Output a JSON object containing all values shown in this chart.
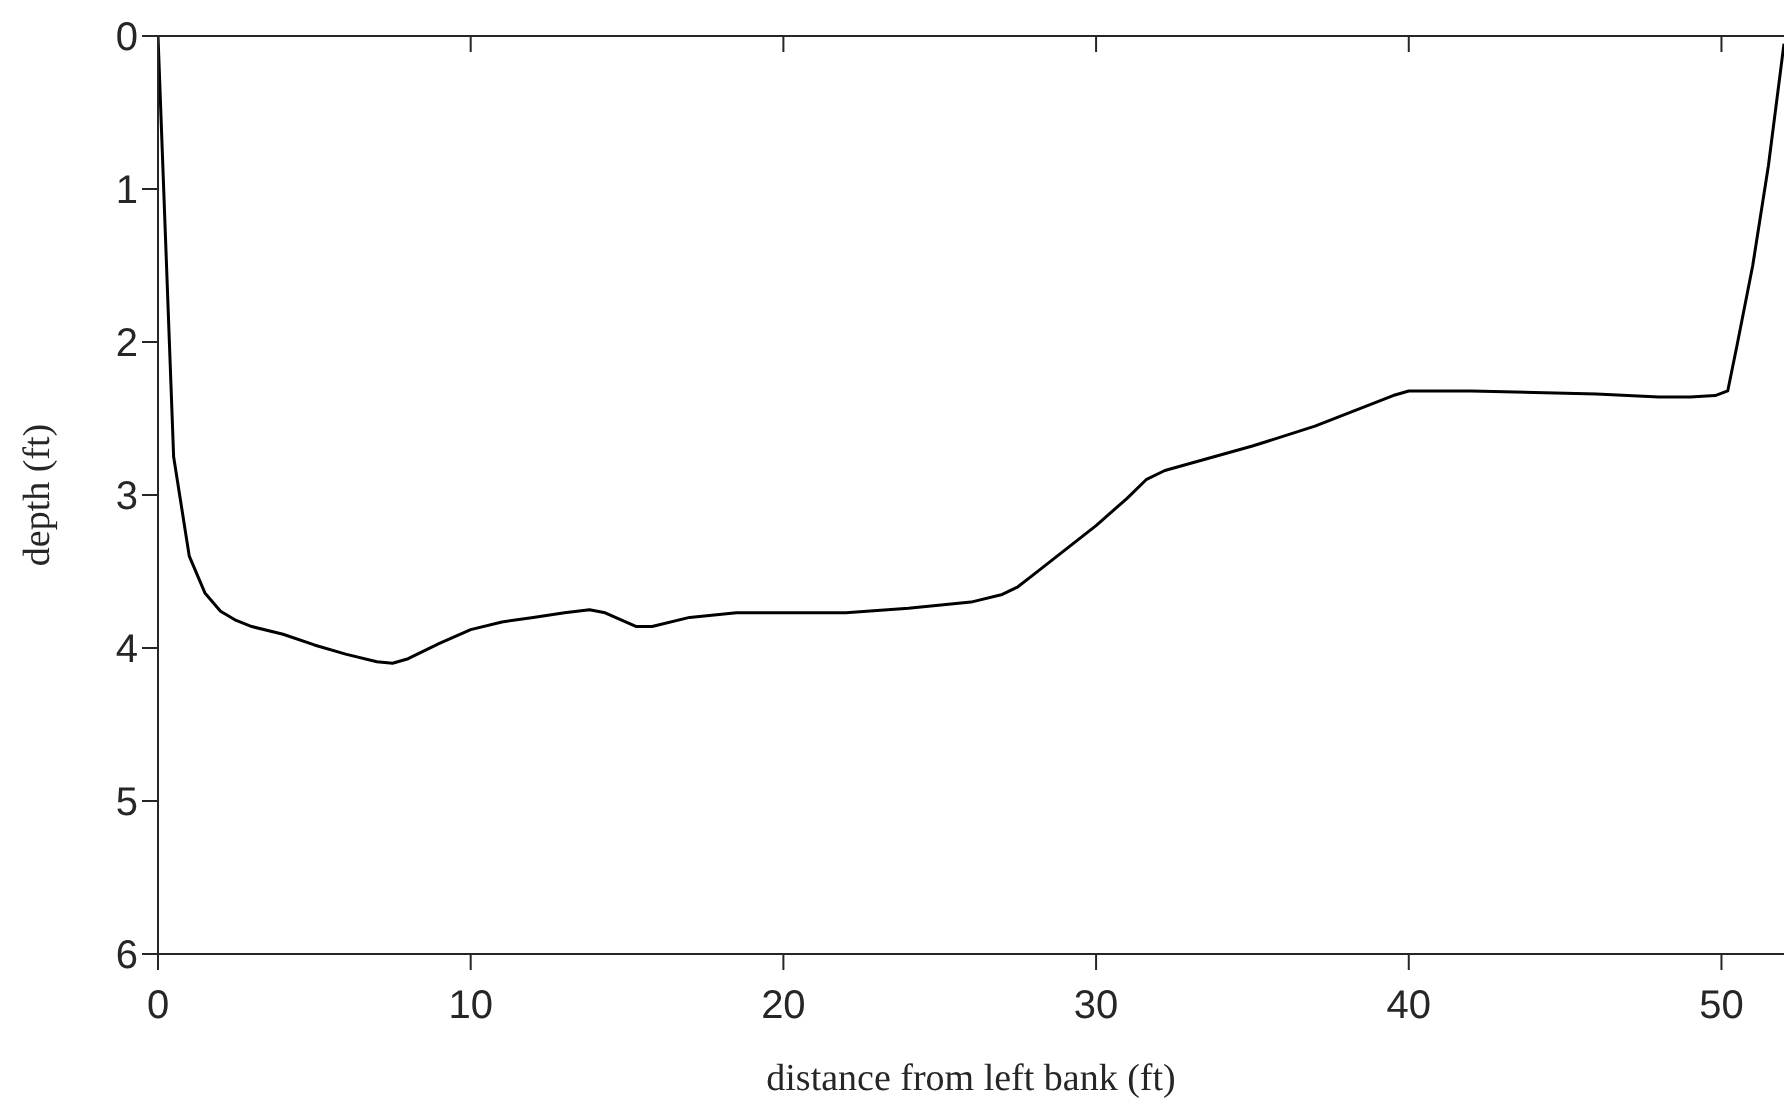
{
  "chart_data": {
    "type": "line",
    "xlabel": "distance from left bank (ft)",
    "ylabel": "depth (ft)",
    "xlim": [
      0,
      52
    ],
    "xticks": [
      0,
      10,
      20,
      30,
      40,
      50
    ],
    "ylim": [
      6,
      0
    ],
    "yticks": [
      0,
      1,
      2,
      3,
      4,
      5,
      6
    ],
    "marker": "none",
    "line_style": "solid",
    "series": [
      {
        "color": "#000000",
        "x": [
          0,
          0.5,
          1,
          1.5,
          2,
          2.5,
          3,
          4,
          5,
          6,
          7,
          7.5,
          8,
          9,
          10,
          11,
          12,
          13,
          13.8,
          14.3,
          15.3,
          15.8,
          17,
          18.5,
          20,
          22,
          24,
          26,
          27,
          27.5,
          28,
          30,
          31,
          31.6,
          32.2,
          35,
          37,
          39.5,
          40,
          42,
          46,
          48,
          49,
          49.8,
          50.2,
          50.5,
          51,
          51.5,
          52
        ],
        "values": [
          0,
          2.75,
          3.4,
          3.64,
          3.76,
          3.82,
          3.86,
          3.91,
          3.98,
          4.04,
          4.09,
          4.1,
          4.07,
          3.97,
          3.88,
          3.83,
          3.8,
          3.77,
          3.75,
          3.77,
          3.86,
          3.86,
          3.8,
          3.77,
          3.77,
          3.77,
          3.74,
          3.7,
          3.65,
          3.6,
          3.52,
          3.2,
          3.02,
          2.9,
          2.84,
          2.68,
          2.55,
          2.35,
          2.32,
          2.32,
          2.34,
          2.36,
          2.36,
          2.35,
          2.32,
          2.02,
          1.5,
          0.85,
          0.05
        ]
      }
    ]
  }
}
